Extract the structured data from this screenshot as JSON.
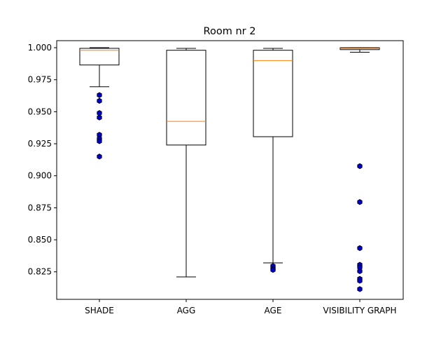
{
  "chart_data": {
    "type": "boxplot",
    "title": "Room nr 2",
    "xlabel": "",
    "ylabel": "",
    "ylim": [
      0.8035,
      1.0055
    ],
    "yticks": [
      0.825,
      0.85,
      0.875,
      0.9,
      0.925,
      0.95,
      0.975,
      1.0
    ],
    "ytick_labels": [
      "0.825",
      "0.850",
      "0.875",
      "0.900",
      "0.925",
      "0.950",
      "0.975",
      "1.000"
    ],
    "grid": false,
    "categories": [
      "SHADE",
      "AGG",
      "AGE",
      "VISIBILITY GRAPH"
    ],
    "boxes": [
      {
        "whisker_low": 0.9695,
        "q1": 0.9865,
        "median": 0.998,
        "q3": 0.9995,
        "whisker_high": 1.0,
        "fliers": [
          0.963,
          0.9585,
          0.949,
          0.9455,
          0.932,
          0.929,
          0.927,
          0.915
        ]
      },
      {
        "whisker_low": 0.821,
        "q1": 0.924,
        "median": 0.9425,
        "q3": 0.998,
        "whisker_high": 0.9995,
        "fliers": []
      },
      {
        "whisker_low": 0.832,
        "q1": 0.9305,
        "median": 0.99,
        "q3": 0.998,
        "whisker_high": 0.9995,
        "fliers": [
          0.8295,
          0.8275,
          0.8265
        ]
      },
      {
        "whisker_low": 0.9965,
        "q1": 0.9985,
        "median": 0.9995,
        "q3": 1.0,
        "whisker_high": 1.0,
        "fliers": [
          0.9075,
          0.8795,
          0.8435,
          0.8305,
          0.8285,
          0.8255,
          0.8195,
          0.818,
          0.8115
        ]
      }
    ],
    "colors": {
      "box": "#000000",
      "median": "#ff7f0e",
      "flier_fill": "#0000cc",
      "flier_edge": "#000033"
    }
  }
}
